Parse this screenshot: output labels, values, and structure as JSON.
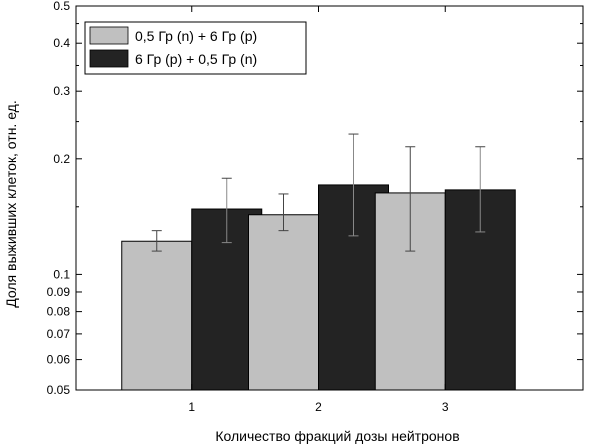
{
  "chart_data": {
    "type": "bar",
    "title": "",
    "xlabel": "Количество фракций дозы нейтронов",
    "ylabel": "Доля выживших клеток, отн. ед.",
    "yscale": "log",
    "ylim": [
      0.05,
      0.5
    ],
    "yticks": [
      0.05,
      0.06,
      0.07,
      0.08,
      0.09,
      0.1,
      0.2,
      0.3,
      0.4,
      0.5
    ],
    "ytick_labels": [
      "0.05",
      "0.06",
      "0.07",
      "0.08",
      "0.09",
      "0.1",
      "0.2",
      "0.3",
      "0.4",
      "0.5"
    ],
    "categories": [
      "1",
      "2",
      "3"
    ],
    "grid": false,
    "legend_position": "top-left",
    "series": [
      {
        "name": "0,5 Гр (n) + 6 Гр (p)",
        "color": "#c0c0c0",
        "values": [
          0.122,
          0.143,
          0.163
        ],
        "err_low": [
          0.115,
          0.13,
          0.115
        ],
        "err_high": [
          0.13,
          0.162,
          0.215
        ]
      },
      {
        "name": "6 Гр (p) + 0,5 Гр (n)",
        "color": "#232323",
        "values": [
          0.148,
          0.171,
          0.166
        ],
        "err_low": [
          0.121,
          0.126,
          0.129
        ],
        "err_high": [
          0.178,
          0.232,
          0.215
        ]
      }
    ]
  }
}
